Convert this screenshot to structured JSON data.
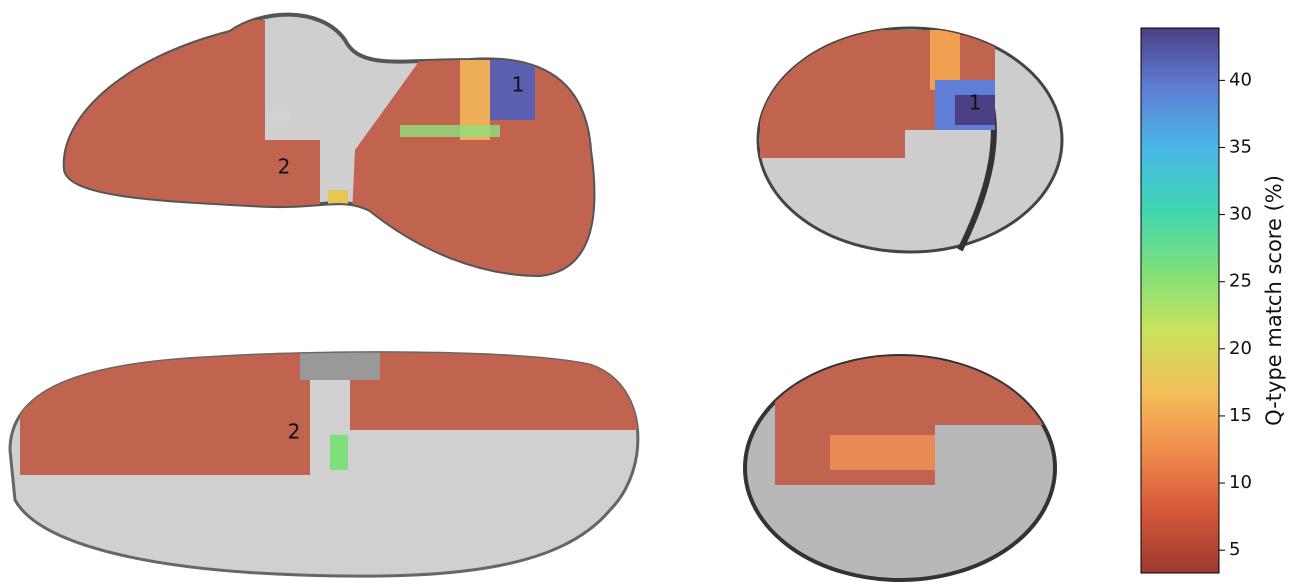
{
  "colorbar": {
    "label": "Q-type match score (%)",
    "lim": [
      3.3,
      43.9
    ],
    "ticks": [
      5,
      10,
      15,
      20,
      25,
      30,
      35,
      40
    ],
    "colormap": [
      "#9b3a2e",
      "#d4573a",
      "#f08a4b",
      "#f3c05a",
      "#c9e35d",
      "#7ee07a",
      "#3fd6b0",
      "#48b7e6",
      "#5f7fd6",
      "#4c3f84"
    ]
  },
  "annotations": [
    "1",
    "2",
    "1",
    "2"
  ]
}
